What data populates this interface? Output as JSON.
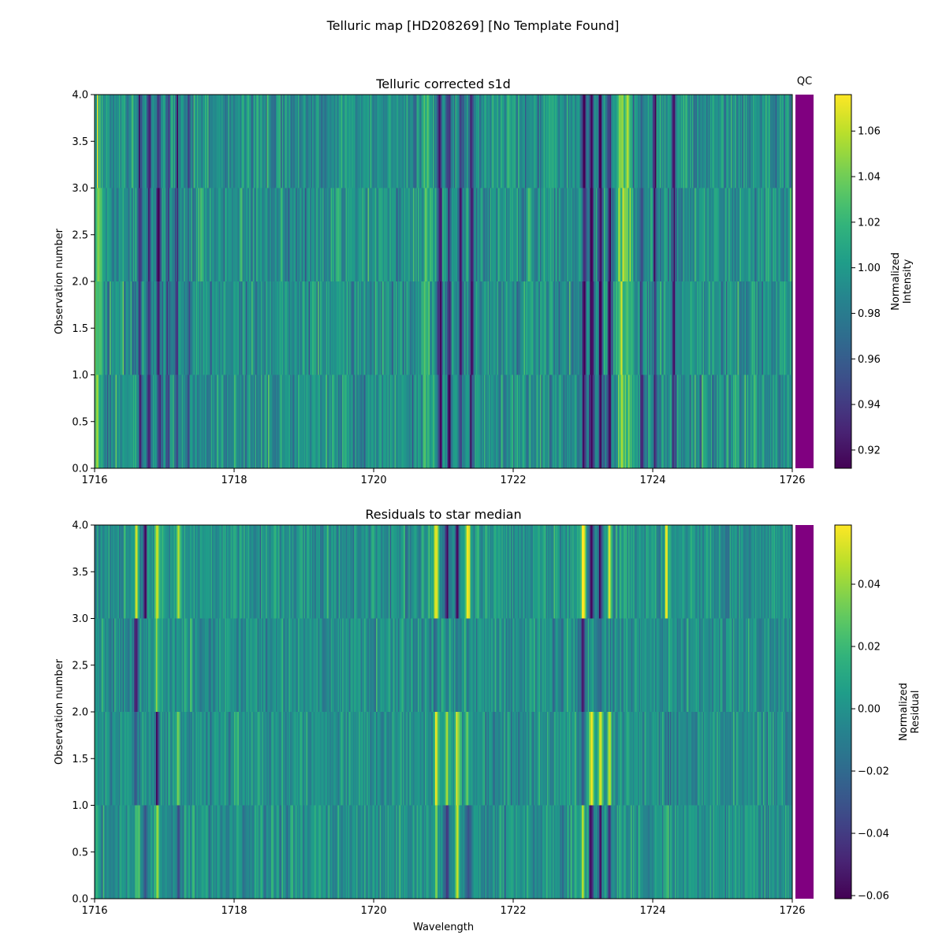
{
  "figure": {
    "title": "Telluric map [HD208269] [No Template Found]",
    "qc_label": "QC",
    "qc_color": "#800080"
  },
  "chart_data": [
    {
      "type": "heatmap",
      "title": "Telluric corrected s1d",
      "xlabel": "",
      "ylabel": "Observation number",
      "xlim": [
        1716,
        1726
      ],
      "ylim": [
        0,
        4
      ],
      "xticks": [
        1716,
        1718,
        1720,
        1722,
        1724,
        1726
      ],
      "xtick_labels": [
        "1716",
        "1718",
        "1720",
        "1722",
        "1724",
        "1726"
      ],
      "yticks": [
        0,
        0.5,
        1,
        1.5,
        2,
        2.5,
        3,
        3.5,
        4
      ],
      "ytick_labels": [
        "0.0",
        "0.5",
        "1.0",
        "1.5",
        "2.0",
        "2.5",
        "3.0",
        "3.5",
        "4.0"
      ],
      "rows": 4,
      "colormap": "viridis",
      "baseline": 0.995,
      "noise": 0.03,
      "dark_features": [
        {
          "wl": 1716.65,
          "depth": 0.07
        },
        {
          "wl": 1716.78,
          "depth": 0.06
        },
        {
          "wl": 1716.92,
          "depth": 0.07
        },
        {
          "wl": 1717.05,
          "depth": 0.04
        },
        {
          "wl": 1717.18,
          "depth": 0.05
        },
        {
          "wl": 1717.35,
          "depth": 0.04
        },
        {
          "wl": 1720.95,
          "depth": 0.08
        },
        {
          "wl": 1721.08,
          "depth": 0.08
        },
        {
          "wl": 1721.25,
          "depth": 0.06
        },
        {
          "wl": 1721.4,
          "depth": 0.06
        },
        {
          "wl": 1723.02,
          "depth": 0.08
        },
        {
          "wl": 1723.12,
          "depth": 0.09
        },
        {
          "wl": 1723.25,
          "depth": 0.09
        },
        {
          "wl": 1723.38,
          "depth": 0.08
        },
        {
          "wl": 1723.85,
          "depth": 0.05
        },
        {
          "wl": 1724.03,
          "depth": 0.06
        },
        {
          "wl": 1724.3,
          "depth": 0.05
        }
      ],
      "bright_features": [
        {
          "wl": 1716.05,
          "height": 0.04
        },
        {
          "wl": 1723.55,
          "height": 0.06
        },
        {
          "wl": 1723.65,
          "height": 0.05
        },
        {
          "wl": 1720.75,
          "height": 0.03
        }
      ],
      "colorbar": {
        "label": [
          "Normalized",
          "Intensity"
        ],
        "range": [
          0.912,
          1.076
        ],
        "ticks": [
          0.92,
          0.94,
          0.96,
          0.98,
          1.0,
          1.02,
          1.04,
          1.06
        ],
        "tick_labels": [
          "0.92",
          "0.94",
          "0.96",
          "0.98",
          "1.00",
          "1.02",
          "1.04",
          "1.06"
        ]
      }
    },
    {
      "type": "heatmap",
      "title": "Residuals to star median",
      "xlabel": "Wavelength",
      "ylabel": "Observation number",
      "xlim": [
        1716,
        1726
      ],
      "ylim": [
        0,
        4
      ],
      "xticks": [
        1716,
        1718,
        1720,
        1722,
        1724,
        1726
      ],
      "xtick_labels": [
        "1716",
        "1718",
        "1720",
        "1722",
        "1724",
        "1726"
      ],
      "yticks": [
        0,
        0.5,
        1,
        1.5,
        2,
        2.5,
        3,
        3.5,
        4
      ],
      "ytick_labels": [
        "0.0",
        "0.5",
        "1.0",
        "1.5",
        "2.0",
        "2.5",
        "3.0",
        "3.5",
        "4.0"
      ],
      "rows": 4,
      "colormap": "viridis",
      "baseline": 0.0,
      "noise": 0.018,
      "residual_features": [
        {
          "wl": 1716.6,
          "amp": [
            0.03,
            -0.02,
            -0.05,
            0.05
          ]
        },
        {
          "wl": 1716.72,
          "amp": [
            -0.02,
            0.01,
            0.0,
            -0.06
          ]
        },
        {
          "wl": 1716.9,
          "amp": [
            0.04,
            -0.04,
            0.03,
            0.06
          ]
        },
        {
          "wl": 1717.2,
          "amp": [
            -0.03,
            0.03,
            0.0,
            0.05
          ]
        },
        {
          "wl": 1720.9,
          "amp": [
            0.03,
            0.04,
            -0.02,
            0.06
          ]
        },
        {
          "wl": 1721.05,
          "amp": [
            -0.05,
            0.04,
            0.0,
            -0.06
          ]
        },
        {
          "wl": 1721.2,
          "amp": [
            0.04,
            0.05,
            -0.02,
            -0.05
          ]
        },
        {
          "wl": 1721.35,
          "amp": [
            -0.03,
            0.03,
            0.0,
            0.05
          ]
        },
        {
          "wl": 1723.0,
          "amp": [
            0.05,
            -0.02,
            -0.05,
            0.06
          ]
        },
        {
          "wl": 1723.12,
          "amp": [
            -0.05,
            0.06,
            0.0,
            -0.06
          ]
        },
        {
          "wl": 1723.25,
          "amp": [
            -0.05,
            0.05,
            -0.02,
            -0.06
          ]
        },
        {
          "wl": 1723.38,
          "amp": [
            -0.04,
            0.04,
            0.0,
            0.05
          ]
        },
        {
          "wl": 1724.2,
          "amp": [
            0.02,
            -0.02,
            0.0,
            0.05
          ]
        }
      ],
      "colorbar": {
        "label": [
          "Normalized",
          "Residual"
        ],
        "range": [
          -0.061,
          0.059
        ],
        "ticks": [
          -0.06,
          -0.04,
          -0.02,
          0.0,
          0.02,
          0.04
        ],
        "tick_labels": [
          "−0.06",
          "−0.04",
          "−0.02",
          "0.00",
          "0.02",
          "0.04"
        ]
      }
    }
  ]
}
